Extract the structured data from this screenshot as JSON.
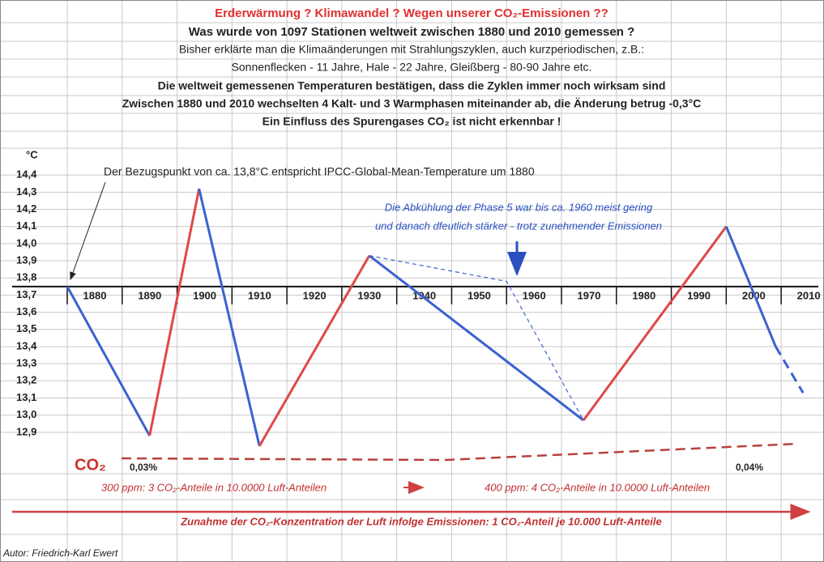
{
  "chart_data": {
    "type": "line",
    "title": "Erderwärmung ?  Klimawandel ? Wegen unserer CO₂-Emissionen ??",
    "subtitle": [
      "Was wurde von 1097 Stationen weltweit zwischen 1880 und 2010 gemessen ?",
      "Bisher erklärte man die Klimaänderungen mit Strahlungszyklen, auch kurzperiodischen, z.B.:",
      "Sonnenflecken - 11 Jahre, Hale - 22 Jahre,  Gleißberg - 80-90 Jahre etc.",
      "Die weltweit gemessenen Temperaturen bestätigen, dass die Zyklen immer noch wirksam sind",
      "Zwischen 1880 und 2010 wechselten 4 Kalt- und 3 Warmphasen miteinander ab, die Änderung betrug -0,3°C",
      "Ein Einfluss des Spurengases CO₂ ist nicht erkennbar !"
    ],
    "y_label": "°C",
    "xlim": [
      1880,
      2015
    ],
    "xticks": [
      1880,
      1890,
      1900,
      1910,
      1920,
      1930,
      1940,
      1950,
      1960,
      1970,
      1980,
      1990,
      2000,
      2010
    ],
    "ylim": [
      12.8,
      14.5
    ],
    "yticks": [
      {
        "value": 12.9,
        "label": "12,9"
      },
      {
        "value": 13.0,
        "label": "13,0"
      },
      {
        "value": 13.1,
        "label": "13,1"
      },
      {
        "value": 13.2,
        "label": "13,2"
      },
      {
        "value": 13.3,
        "label": "13,3"
      },
      {
        "value": 13.4,
        "label": "13,4"
      },
      {
        "value": 13.5,
        "label": "13,5"
      },
      {
        "value": 13.6,
        "label": "13,6"
      },
      {
        "value": 13.7,
        "label": "13,7"
      },
      {
        "value": 13.8,
        "label": "13,8"
      },
      {
        "value": 13.9,
        "label": "13,9"
      },
      {
        "value": 14.0,
        "label": "14,0"
      },
      {
        "value": 14.1,
        "label": "14,1"
      },
      {
        "value": 14.2,
        "label": "14,2"
      },
      {
        "value": 14.3,
        "label": "14,3"
      },
      {
        "value": 14.4,
        "label": "14,4"
      }
    ],
    "x_axis_at": 13.75,
    "grid": true,
    "series": [
      {
        "color": "#3a62d0",
        "x": [
          1880,
          1895
        ],
        "values": [
          13.75,
          12.88
        ]
      },
      {
        "color": "#e04848",
        "x": [
          1895,
          1904
        ],
        "values": [
          12.88,
          14.32
        ]
      },
      {
        "color": "#3a62d0",
        "x": [
          1904,
          1915
        ],
        "values": [
          14.32,
          12.82
        ]
      },
      {
        "color": "#e04848",
        "x": [
          1915,
          1935
        ],
        "values": [
          12.82,
          13.93
        ]
      },
      {
        "color": "#3a62d0",
        "x": [
          1935,
          1974
        ],
        "values": [
          13.93,
          12.97
        ]
      },
      {
        "color": "#e04848",
        "x": [
          1974,
          2000
        ],
        "values": [
          12.97,
          14.1
        ]
      },
      {
        "color": "#3a62d0",
        "x": [
          2000,
          2009
        ],
        "values": [
          14.1,
          13.4
        ]
      },
      {
        "color": "#3a62d0",
        "dashed": true,
        "x": [
          2009,
          2014
        ],
        "values": [
          13.4,
          13.13
        ]
      },
      {
        "color": "#3a62d0",
        "dashed": true,
        "thin": true,
        "x": [
          1935,
          1960,
          1974
        ],
        "values": [
          13.93,
          13.78,
          12.97
        ]
      }
    ],
    "annotations": {
      "reference": "Der Bezugspunkt von ca. 13,8°C entspricht IPCC-Global-Mean-Temperature um 1880",
      "phase5": [
        "Die Abkühlung der Phase 5 war bis ca. 1960 meist gering",
        "und danach dfeutlich stärker - trotz zunehmender Emissionen"
      ],
      "co2": "CO₂",
      "co2_start": "0,03%",
      "co2_end": "0,04%",
      "ppm300": "300 ppm: 3 CO₂-Anteile in 10.0000 Luft-Anteilen",
      "ppm400": "400 ppm: 4 CO₂-Anteile in 10.0000 Luft-Anteilen",
      "increase": "Zunahme der CO₂-Konzentration der Luft infolge Emissionen: 1 CO₂-Anteil je 10.000 Luft-Anteile",
      "author": "Autor: Friedrich-Karl Ewert"
    }
  }
}
